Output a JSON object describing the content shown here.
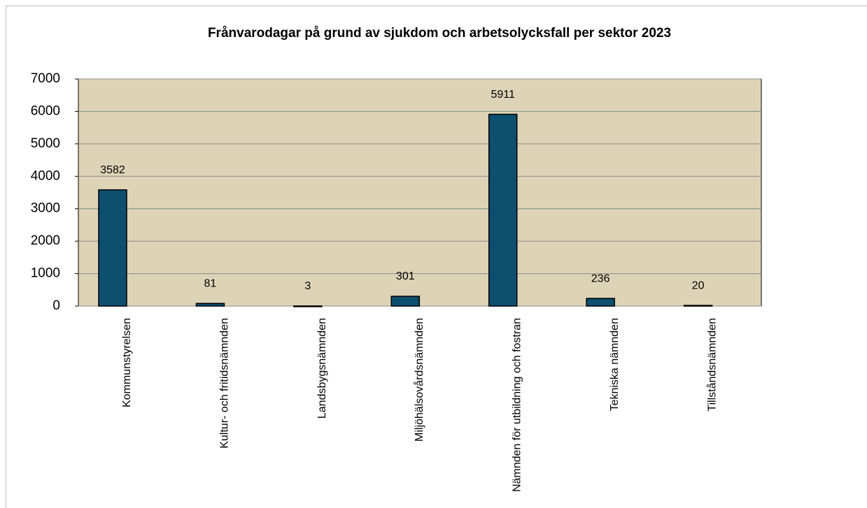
{
  "chart_data": {
    "type": "bar",
    "title": "Frånvarodagar på grund av sjukdom och arbetsolycksfall per sektor 2023",
    "categories": [
      "Kommunstyrelsen",
      "Kultur- och fritidsnämnden",
      "Landsbygsnämnden",
      "Miljöhälsovårdsnämnden",
      "Nämnden för utbildning och fostran",
      "Tekniska nämnden",
      "Tillståndsnämnden"
    ],
    "values": [
      3582,
      81,
      3,
      301,
      5911,
      236,
      20
    ],
    "color": "#0d4f6f",
    "ylim": [
      0,
      7000
    ],
    "yticks": [
      0,
      1000,
      2000,
      3000,
      4000,
      5000,
      6000,
      7000
    ],
    "grid": true
  }
}
